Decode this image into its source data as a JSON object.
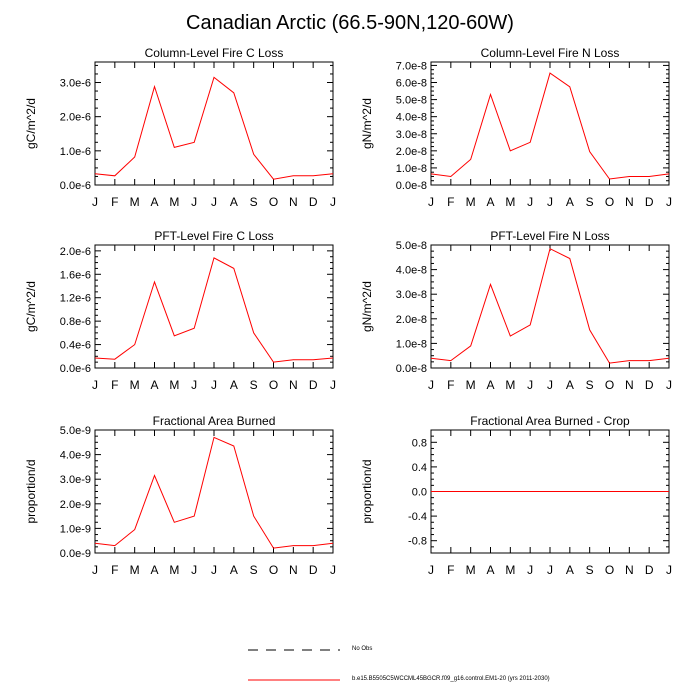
{
  "title": "Canadian Arctic (66.5-90N,120-60W)",
  "line_color": "#ff0000",
  "chart_data": [
    {
      "type": "line",
      "title": "Column-Level Fire C Loss",
      "xlabel": "",
      "ylabel": "gC/m^2/d",
      "categories": [
        "J",
        "F",
        "M",
        "A",
        "M",
        "J",
        "J",
        "A",
        "S",
        "O",
        "N",
        "D",
        "J"
      ],
      "yticks": [
        "0.0e-6",
        "1.0e-6",
        "2.0e-6",
        "3.0e-6"
      ],
      "ytick_values": [
        0,
        1.0,
        2.0,
        3.0
      ],
      "ylim": [
        0,
        3.6
      ],
      "series": [
        {
          "name": "b.e15.B5505C5WCCML45BGCR.f09_g16.control.EM1-20 (yrs 2011-2030)",
          "values": [
            0.33,
            0.27,
            0.82,
            2.88,
            1.1,
            1.25,
            3.15,
            2.7,
            0.9,
            0.17,
            0.27,
            0.27,
            0.33
          ]
        }
      ]
    },
    {
      "type": "line",
      "title": "Column-Level Fire N Loss",
      "xlabel": "",
      "ylabel": "gN/m^2/d",
      "categories": [
        "J",
        "F",
        "M",
        "A",
        "M",
        "J",
        "J",
        "A",
        "S",
        "O",
        "N",
        "D",
        "J"
      ],
      "yticks": [
        "0.0e-8",
        "1.0e-8",
        "2.0e-8",
        "3.0e-8",
        "4.0e-8",
        "5.0e-8",
        "6.0e-8",
        "7.0e-8"
      ],
      "ytick_values": [
        0,
        1,
        2,
        3,
        4,
        5,
        6,
        7
      ],
      "ylim": [
        0,
        7.2
      ],
      "series": [
        {
          "name": "b.e15.B5505C5WCCML45BGCR.f09_g16.control.EM1-20 (yrs 2011-2030)",
          "values": [
            0.65,
            0.5,
            1.5,
            5.3,
            2.0,
            2.5,
            6.55,
            5.75,
            1.95,
            0.35,
            0.5,
            0.5,
            0.65
          ]
        }
      ]
    },
    {
      "type": "line",
      "title": "PFT-Level Fire C Loss",
      "xlabel": "",
      "ylabel": "gC/m^2/d",
      "categories": [
        "J",
        "F",
        "M",
        "A",
        "M",
        "J",
        "J",
        "A",
        "S",
        "O",
        "N",
        "D",
        "J"
      ],
      "yticks": [
        "0.0e-6",
        "0.4e-6",
        "0.8e-6",
        "1.2e-6",
        "1.6e-6",
        "2.0e-6"
      ],
      "ytick_values": [
        0,
        0.4,
        0.8,
        1.2,
        1.6,
        2.0
      ],
      "ylim": [
        0,
        2.1
      ],
      "series": [
        {
          "name": "b.e15.B5505C5WCCML45BGCR.f09_g16.control.EM1-20 (yrs 2011-2030)",
          "values": [
            0.17,
            0.15,
            0.4,
            1.47,
            0.55,
            0.68,
            1.88,
            1.7,
            0.6,
            0.1,
            0.14,
            0.14,
            0.17
          ]
        }
      ]
    },
    {
      "type": "line",
      "title": "PFT-Level Fire N Loss",
      "xlabel": "",
      "ylabel": "gN/m^2/d",
      "categories": [
        "J",
        "F",
        "M",
        "A",
        "M",
        "J",
        "J",
        "A",
        "S",
        "O",
        "N",
        "D",
        "J"
      ],
      "yticks": [
        "0.0e-8",
        "1.0e-8",
        "2.0e-8",
        "3.0e-8",
        "4.0e-8",
        "5.0e-8"
      ],
      "ytick_values": [
        0,
        1,
        2,
        3,
        4,
        5
      ],
      "ylim": [
        0,
        5.0
      ],
      "series": [
        {
          "name": "b.e15.B5505C5WCCML45BGCR.f09_g16.control.EM1-20 (yrs 2011-2030)",
          "values": [
            0.4,
            0.3,
            0.9,
            3.4,
            1.3,
            1.75,
            4.85,
            4.45,
            1.55,
            0.2,
            0.3,
            0.3,
            0.4
          ]
        }
      ]
    },
    {
      "type": "line",
      "title": "Fractional Area Burned",
      "xlabel": "",
      "ylabel": "proportion/d",
      "categories": [
        "J",
        "F",
        "M",
        "A",
        "M",
        "J",
        "J",
        "A",
        "S",
        "O",
        "N",
        "D",
        "J"
      ],
      "yticks": [
        "0.0e-9",
        "1.0e-9",
        "2.0e-9",
        "3.0e-9",
        "4.0e-9",
        "5.0e-9"
      ],
      "ytick_values": [
        0,
        1,
        2,
        3,
        4,
        5
      ],
      "ylim": [
        0,
        5.0
      ],
      "series": [
        {
          "name": "b.e15.B5505C5WCCML45BGCR.f09_g16.control.EM1-20 (yrs 2011-2030)",
          "values": [
            0.4,
            0.3,
            0.95,
            3.15,
            1.25,
            1.5,
            4.7,
            4.35,
            1.5,
            0.2,
            0.3,
            0.3,
            0.4
          ]
        }
      ]
    },
    {
      "type": "line",
      "title": "Fractional Area Burned - Crop",
      "xlabel": "",
      "ylabel": "proportion/d",
      "categories": [
        "J",
        "F",
        "M",
        "A",
        "M",
        "J",
        "J",
        "A",
        "S",
        "O",
        "N",
        "D",
        "J"
      ],
      "yticks": [
        "-0.8",
        "-0.4",
        "0.0",
        "0.4",
        "0.8"
      ],
      "ytick_values": [
        -0.8,
        -0.4,
        0.0,
        0.4,
        0.8
      ],
      "ylim": [
        -1.0,
        1.0
      ],
      "series": [
        {
          "name": "b.e15.B5505C5WCCML45BGCR.f09_g16.control.EM1-20 (yrs 2011-2030)",
          "values": [
            0,
            0,
            0,
            0,
            0,
            0,
            0,
            0,
            0,
            0,
            0,
            0,
            0
          ]
        }
      ]
    }
  ],
  "legend": [
    {
      "style": "dashed",
      "color": "#000000",
      "label": "No Obs"
    },
    {
      "style": "solid",
      "color": "#ff0000",
      "label": "b.e15.B5505C5WCCML45BGCR.f09_g16.control.EM1-20 (yrs 2011-2030)"
    }
  ]
}
